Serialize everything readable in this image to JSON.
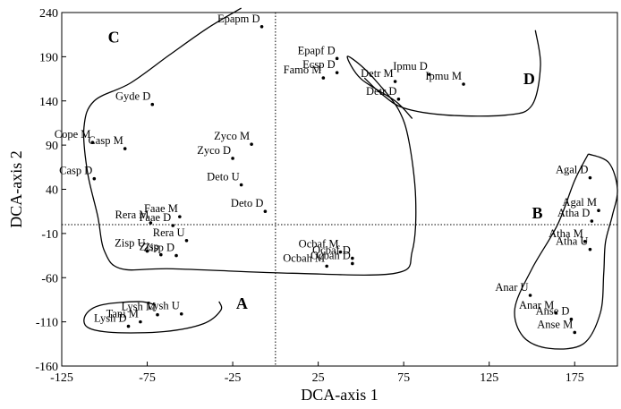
{
  "chart_data": {
    "type": "scatter",
    "xlabel": "DCA-axis 1",
    "ylabel": "DCA-axis 2",
    "xlim": [
      -125,
      200
    ],
    "ylim": [
      -160,
      240
    ],
    "xticks": [
      -125,
      -75,
      -25,
      25,
      75,
      125,
      175
    ],
    "yticks": [
      -160,
      -110,
      -60,
      -10,
      40,
      90,
      140,
      190,
      240
    ],
    "xtick_labels": [
      "-125",
      "-75",
      "-25",
      "25",
      "75",
      "125",
      "175"
    ],
    "ytick_labels": [
      "-160",
      "-110",
      "-60",
      "-10",
      "40",
      "90",
      "140",
      "190",
      "240"
    ],
    "reference_lines": {
      "x": 0,
      "y": 0
    },
    "grid": false,
    "points": [
      {
        "label": "Epapm D",
        "x": -8,
        "y": 224
      },
      {
        "label": "Epapf D",
        "x": 36,
        "y": 188
      },
      {
        "label": "Ecsp D",
        "x": 36,
        "y": 172
      },
      {
        "label": "Famo M",
        "x": 28,
        "y": 166
      },
      {
        "label": "Detr M",
        "x": 70,
        "y": 162
      },
      {
        "label": "Ipmu D",
        "x": 90,
        "y": 170
      },
      {
        "label": "Ipmu M",
        "x": 110,
        "y": 159
      },
      {
        "label": "Detr D",
        "x": 72,
        "y": 142
      },
      {
        "label": "Gyde D",
        "x": -72,
        "y": 136
      },
      {
        "label": "Cope M",
        "x": -107,
        "y": 93
      },
      {
        "label": "Casp M",
        "x": -88,
        "y": 86
      },
      {
        "label": "Zyco M",
        "x": -14,
        "y": 91
      },
      {
        "label": "Zyco D",
        "x": -25,
        "y": 75
      },
      {
        "label": "Casp D",
        "x": -106,
        "y": 52
      },
      {
        "label": "Deto U",
        "x": -20,
        "y": 45
      },
      {
        "label": "Deto D",
        "x": -6,
        "y": 15
      },
      {
        "label": "Rera M",
        "x": -73,
        "y": 2
      },
      {
        "label": "Faae M",
        "x": -56,
        "y": 9
      },
      {
        "label": "Faae D",
        "x": -60,
        "y": -1
      },
      {
        "label": "Rera U",
        "x": -52,
        "y": -18
      },
      {
        "label": "Zisp U",
        "x": -75,
        "y": -30
      },
      {
        "label": "Zisp",
        "x": -67,
        "y": -34
      },
      {
        "label": "Zisp D",
        "x": -58,
        "y": -35
      },
      {
        "label": "Ocbaf M",
        "x": 38,
        "y": -31
      },
      {
        "label": "Ocbaf D",
        "x": 45,
        "y": -38
      },
      {
        "label": "Ocbah M",
        "x": 30,
        "y": -47
      },
      {
        "label": "Ocbah D",
        "x": 45,
        "y": -44
      },
      {
        "label": "Agal D",
        "x": 184,
        "y": 53
      },
      {
        "label": "Agal M",
        "x": 189,
        "y": 16
      },
      {
        "label": "Atha D",
        "x": 185,
        "y": 4
      },
      {
        "label": "Atha M",
        "x": 181,
        "y": -19
      },
      {
        "label": "Atha U",
        "x": 184,
        "y": -28
      },
      {
        "label": "Anar U",
        "x": 149,
        "y": -80
      },
      {
        "label": "Anar M",
        "x": 164,
        "y": -100
      },
      {
        "label": "Anse D",
        "x": 173,
        "y": -107
      },
      {
        "label": "Anse M",
        "x": 175,
        "y": -122
      },
      {
        "label": "Tani M",
        "x": -79,
        "y": -110
      },
      {
        "label": "Lysh M",
        "x": -69,
        "y": -102
      },
      {
        "label": "Lysh U",
        "x": -55,
        "y": -101
      },
      {
        "label": "Lysh D",
        "x": -86,
        "y": -115
      }
    ],
    "group_labels": [
      {
        "label": "A",
        "x": -23,
        "y": -95
      },
      {
        "label": "B",
        "x": 150,
        "y": 7
      },
      {
        "label": "C",
        "x": -98,
        "y": 206
      },
      {
        "label": "D",
        "x": 145,
        "y": 159
      }
    ]
  }
}
